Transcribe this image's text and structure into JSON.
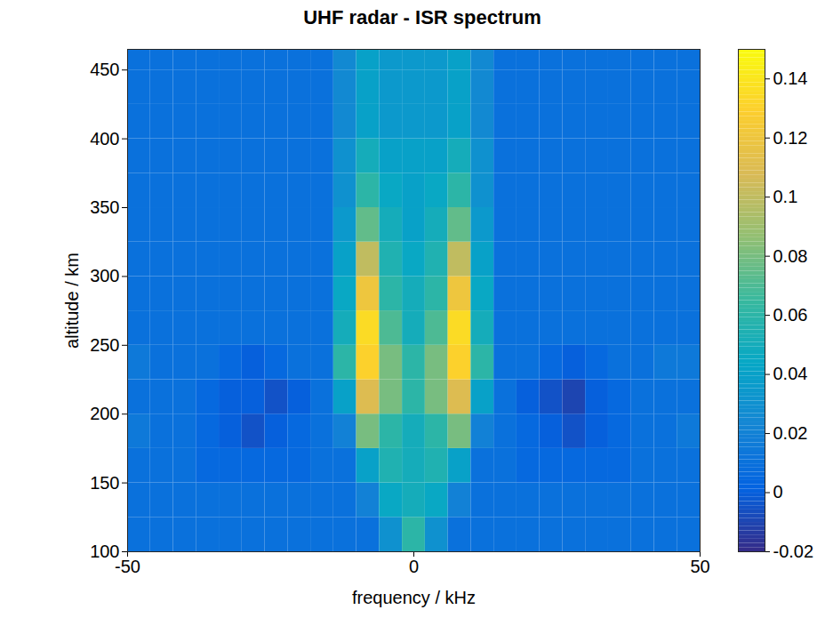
{
  "chart_data": {
    "type": "heatmap",
    "title": "UHF radar - ISR spectrum",
    "x_label": "frequency / kHz",
    "y_label": "altitude / km",
    "xlim": [
      -50,
      50
    ],
    "ylim": [
      100,
      465
    ],
    "xticks": [
      -50,
      0,
      50
    ],
    "yticks": [
      100,
      150,
      200,
      250,
      300,
      350,
      400,
      450
    ],
    "x_edges": [
      -50,
      -46,
      -42,
      -38,
      -34,
      -30,
      -26,
      -22,
      -18,
      -14,
      -10,
      -6,
      -2,
      2,
      6,
      10,
      14,
      18,
      22,
      26,
      30,
      34,
      38,
      42,
      46,
      50
    ],
    "y_edges": [
      100,
      125,
      150,
      175,
      200,
      225,
      250,
      275,
      300,
      325,
      350,
      375,
      400,
      425,
      450,
      475
    ],
    "z": [
      [
        0.01,
        0.01,
        0.01,
        0.01,
        0.01,
        0.01,
        0.01,
        0.01,
        0.01,
        0.01,
        0.01,
        0.03,
        0.06,
        0.03,
        0.01,
        0.01,
        0.01,
        0.01,
        0.01,
        0.01,
        0.01,
        0.01,
        0.01,
        0.01,
        0.01
      ],
      [
        0.01,
        0.01,
        0.01,
        0.01,
        0.01,
        0.01,
        0.01,
        0.01,
        0.01,
        0.01,
        0.02,
        0.045,
        0.05,
        0.045,
        0.02,
        0.01,
        0.01,
        0.01,
        0.01,
        0.01,
        0.01,
        0.01,
        0.01,
        0.01,
        0.01
      ],
      [
        0.01,
        0.01,
        0.01,
        0.005,
        0.005,
        0.005,
        0.005,
        0.005,
        0.01,
        0.01,
        0.04,
        0.055,
        0.05,
        0.055,
        0.04,
        0.01,
        0.01,
        0.005,
        0.005,
        0.005,
        0.005,
        0.005,
        0.01,
        0.01,
        0.01
      ],
      [
        0.015,
        0.01,
        0.01,
        0.005,
        0,
        -0.005,
        0,
        0.005,
        0.01,
        0.02,
        0.08,
        0.06,
        0.05,
        0.06,
        0.08,
        0.02,
        0.01,
        0.005,
        0,
        -0.005,
        0,
        0.005,
        0.01,
        0.01,
        0.015
      ],
      [
        0.01,
        0.01,
        0.01,
        0.005,
        0,
        0,
        -0.005,
        0,
        0.01,
        0.04,
        0.11,
        0.08,
        0.06,
        0.08,
        0.11,
        0.04,
        0.01,
        0,
        -0.005,
        -0.01,
        0,
        0.005,
        0.01,
        0.01,
        0.01
      ],
      [
        0.015,
        0.01,
        0.01,
        0.01,
        0.005,
        0,
        0.005,
        0.01,
        0.01,
        0.06,
        0.13,
        0.08,
        0.06,
        0.08,
        0.13,
        0.06,
        0.01,
        0.01,
        0.005,
        0,
        0.005,
        0.01,
        0.01,
        0.015,
        0.015
      ],
      [
        0.01,
        0.01,
        0.01,
        0.01,
        0.01,
        0.01,
        0.01,
        0.01,
        0.01,
        0.05,
        0.135,
        0.07,
        0.05,
        0.07,
        0.135,
        0.05,
        0.01,
        0.01,
        0.01,
        0.01,
        0.01,
        0.01,
        0.01,
        0.01,
        0.01
      ],
      [
        0.01,
        0.01,
        0.01,
        0.01,
        0.01,
        0.01,
        0.01,
        0.01,
        0.01,
        0.045,
        0.12,
        0.06,
        0.05,
        0.06,
        0.12,
        0.045,
        0.01,
        0.01,
        0.01,
        0.01,
        0.01,
        0.01,
        0.01,
        0.01,
        0.01
      ],
      [
        0.01,
        0.01,
        0.01,
        0.01,
        0.01,
        0.01,
        0.01,
        0.01,
        0.01,
        0.04,
        0.1,
        0.055,
        0.045,
        0.055,
        0.1,
        0.04,
        0.01,
        0.01,
        0.01,
        0.01,
        0.01,
        0.01,
        0.01,
        0.01,
        0.01
      ],
      [
        0.01,
        0.01,
        0.01,
        0.01,
        0.01,
        0.01,
        0.01,
        0.01,
        0.01,
        0.035,
        0.075,
        0.05,
        0.04,
        0.05,
        0.075,
        0.035,
        0.01,
        0.01,
        0.01,
        0.01,
        0.01,
        0.01,
        0.01,
        0.01,
        0.01
      ],
      [
        0.01,
        0.01,
        0.01,
        0.01,
        0.01,
        0.01,
        0.01,
        0.01,
        0.01,
        0.03,
        0.06,
        0.045,
        0.04,
        0.045,
        0.06,
        0.03,
        0.01,
        0.01,
        0.01,
        0.01,
        0.01,
        0.01,
        0.01,
        0.01,
        0.01
      ],
      [
        0.01,
        0.01,
        0.01,
        0.01,
        0.01,
        0.01,
        0.01,
        0.01,
        0.01,
        0.03,
        0.05,
        0.04,
        0.04,
        0.04,
        0.05,
        0.03,
        0.01,
        0.01,
        0.01,
        0.01,
        0.01,
        0.01,
        0.01,
        0.01,
        0.01
      ],
      [
        0.01,
        0.01,
        0.01,
        0.01,
        0.01,
        0.01,
        0.01,
        0.01,
        0.01,
        0.025,
        0.04,
        0.035,
        0.035,
        0.035,
        0.04,
        0.025,
        0.01,
        0.01,
        0.01,
        0.01,
        0.01,
        0.01,
        0.01,
        0.01,
        0.01
      ],
      [
        0.01,
        0.01,
        0.01,
        0.01,
        0.01,
        0.01,
        0.01,
        0.01,
        0.01,
        0.025,
        0.04,
        0.035,
        0.035,
        0.035,
        0.04,
        0.025,
        0.01,
        0.01,
        0.01,
        0.01,
        0.01,
        0.01,
        0.01,
        0.01,
        0.01
      ],
      [
        0.01,
        0.01,
        0.01,
        0.01,
        0.01,
        0.01,
        0.01,
        0.01,
        0.01,
        0.025,
        0.04,
        0.035,
        0.035,
        0.035,
        0.04,
        0.025,
        0.01,
        0.01,
        0.01,
        0.01,
        0.01,
        0.01,
        0.01,
        0.01,
        0.01
      ]
    ],
    "colorbar": {
      "range": [
        -0.02,
        0.15
      ],
      "ticks": [
        -0.02,
        0,
        0.02,
        0.04,
        0.06,
        0.08,
        0.1,
        0.12,
        0.14
      ]
    }
  }
}
